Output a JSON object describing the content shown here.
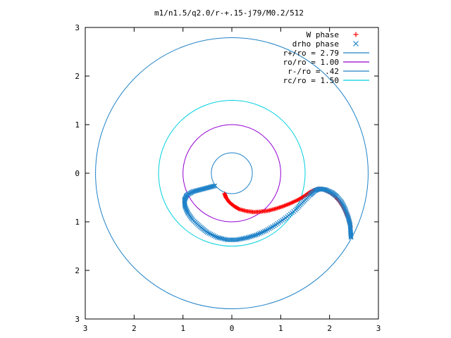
{
  "chart_data": {
    "type": "scatter",
    "title": "m1/n1.5/q2.0/r-+.15-j79/M0.2/512",
    "xlabel": "",
    "ylabel": "",
    "xlim": [
      -3,
      3
    ],
    "ylim": [
      -3,
      3
    ],
    "x_tick_labels": [
      "3",
      "2",
      "1",
      "0",
      "1",
      "2",
      "3"
    ],
    "y_tick_labels": [
      "3",
      "2",
      "1",
      "0",
      "1",
      "2",
      "3"
    ],
    "x_tick_values": [
      -3,
      -2,
      -1,
      0,
      1,
      2,
      3
    ],
    "y_tick_values": [
      3,
      2,
      1,
      0,
      -1,
      -2,
      -3
    ],
    "grid": false,
    "legend_position": "top-right",
    "circles": [
      {
        "name": "r+/ro = 2.79",
        "label": "r+/ro = 2.79",
        "radius": 2.79,
        "color": "#1f82c8"
      },
      {
        "name": "ro/ro = 1.00",
        "label": "ro/ro = 1.00",
        "radius": 1.0,
        "color": "#9400d3"
      },
      {
        "name": "r-/ro = .42",
        "label": "r-/ro = .42",
        "radius": 0.42,
        "color": "#1f82c8"
      },
      {
        "name": "rc/ro = 1.50",
        "label": "rc/ro = 1.50",
        "radius": 1.5,
        "color": "#00d0e0"
      }
    ],
    "series": [
      {
        "name": "W phase",
        "label": "W phase",
        "marker": "plus",
        "color": "#ff0000",
        "points": [
          [
            -0.15,
            -0.42
          ],
          [
            -0.12,
            -0.5
          ],
          [
            -0.05,
            -0.6
          ],
          [
            0.05,
            -0.68
          ],
          [
            0.15,
            -0.74
          ],
          [
            0.3,
            -0.78
          ],
          [
            0.45,
            -0.8
          ],
          [
            0.6,
            -0.79
          ],
          [
            0.75,
            -0.77
          ],
          [
            0.9,
            -0.73
          ],
          [
            1.05,
            -0.68
          ],
          [
            1.2,
            -0.62
          ],
          [
            1.35,
            -0.55
          ],
          [
            1.5,
            -0.46
          ],
          [
            1.6,
            -0.39
          ],
          [
            1.7,
            -0.34
          ],
          [
            1.8,
            -0.32
          ],
          [
            1.9,
            -0.34
          ],
          [
            2.0,
            -0.39
          ],
          [
            2.1,
            -0.47
          ],
          [
            2.2,
            -0.58
          ],
          [
            2.28,
            -0.7
          ],
          [
            2.35,
            -0.84
          ],
          [
            2.4,
            -0.98
          ],
          [
            2.43,
            -1.1
          ]
        ]
      },
      {
        "name": "drho phase",
        "label": "drho phase",
        "marker": "cross",
        "color": "#1f82c8",
        "points": [
          [
            -0.35,
            -0.26
          ],
          [
            -0.5,
            -0.3
          ],
          [
            -0.65,
            -0.34
          ],
          [
            -0.8,
            -0.38
          ],
          [
            -0.92,
            -0.45
          ],
          [
            -0.97,
            -0.55
          ],
          [
            -0.96,
            -0.68
          ],
          [
            -0.9,
            -0.82
          ],
          [
            -0.8,
            -0.96
          ],
          [
            -0.65,
            -1.1
          ],
          [
            -0.5,
            -1.22
          ],
          [
            -0.3,
            -1.32
          ],
          [
            -0.1,
            -1.37
          ],
          [
            0.1,
            -1.37
          ],
          [
            0.3,
            -1.33
          ],
          [
            0.5,
            -1.27
          ],
          [
            0.7,
            -1.18
          ],
          [
            0.9,
            -1.06
          ],
          [
            1.1,
            -0.92
          ],
          [
            1.3,
            -0.76
          ],
          [
            1.45,
            -0.6
          ],
          [
            1.6,
            -0.45
          ],
          [
            1.7,
            -0.36
          ],
          [
            1.8,
            -0.32
          ],
          [
            1.92,
            -0.34
          ],
          [
            2.05,
            -0.4
          ],
          [
            2.15,
            -0.48
          ],
          [
            2.25,
            -0.6
          ],
          [
            2.32,
            -0.74
          ],
          [
            2.38,
            -0.9
          ],
          [
            2.42,
            -1.05
          ],
          [
            2.43,
            -1.2
          ],
          [
            2.44,
            -1.32
          ]
        ]
      }
    ]
  }
}
